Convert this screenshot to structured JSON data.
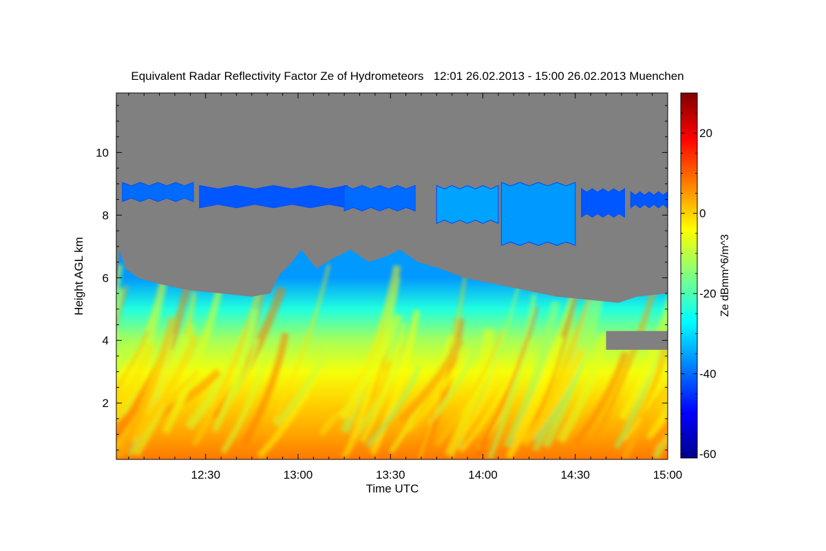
{
  "chart_data": {
    "type": "heatmap",
    "title": "Equivalent Radar Reflectivity Factor Ze of Hydrometeors   12:01 26.02.2013 - 15:00 26.02.2013 Muenchen",
    "xlabel": "Time UTC",
    "ylabel": "Height AGL km",
    "colorbar_label": "Ze dBmm^6/m^3",
    "x_range_minutes_utc": [
      721,
      900
    ],
    "x_ticks": [
      {
        "minute": 750,
        "label": "12:30"
      },
      {
        "minute": 780,
        "label": "13:00"
      },
      {
        "minute": 810,
        "label": "13:30"
      },
      {
        "minute": 840,
        "label": "14:00"
      },
      {
        "minute": 870,
        "label": "14:30"
      },
      {
        "minute": 900,
        "label": "15:00"
      }
    ],
    "y_range_km": [
      0.2,
      11.9
    ],
    "y_ticks": [
      {
        "value": 2,
        "label": "2"
      },
      {
        "value": 4,
        "label": "4"
      },
      {
        "value": 6,
        "label": "6"
      },
      {
        "value": 8,
        "label": "8"
      },
      {
        "value": 10,
        "label": "10"
      }
    ],
    "colorbar_range": [
      -61,
      30
    ],
    "colorbar_ticks": [
      {
        "value": 20,
        "label": "20"
      },
      {
        "value": 0,
        "label": "0"
      },
      {
        "value": -20,
        "label": "-20"
      },
      {
        "value": -40,
        "label": "-40"
      },
      {
        "value": -60,
        "label": "-60"
      }
    ],
    "colormap": [
      "#00008f",
      "#0000ff",
      "#0080ff",
      "#00ffff",
      "#80ff80",
      "#ffff00",
      "#ff8000",
      "#ff0000",
      "#800000"
    ],
    "no_data_color": "#808080",
    "lower_cloud": {
      "top_km": [
        {
          "t": 721,
          "h": 5.4
        },
        {
          "t": 722,
          "h": 6.9
        },
        {
          "t": 724,
          "h": 6.3
        },
        {
          "t": 728,
          "h": 6.0
        },
        {
          "t": 735,
          "h": 5.8
        },
        {
          "t": 745,
          "h": 5.6
        },
        {
          "t": 755,
          "h": 5.5
        },
        {
          "t": 765,
          "h": 5.4
        },
        {
          "t": 771,
          "h": 5.5
        },
        {
          "t": 774,
          "h": 6.1
        },
        {
          "t": 778,
          "h": 6.5
        },
        {
          "t": 781,
          "h": 6.9
        },
        {
          "t": 786,
          "h": 6.3
        },
        {
          "t": 791,
          "h": 6.6
        },
        {
          "t": 797,
          "h": 6.9
        },
        {
          "t": 803,
          "h": 6.5
        },
        {
          "t": 809,
          "h": 6.7
        },
        {
          "t": 813,
          "h": 6.9
        },
        {
          "t": 819,
          "h": 6.5
        },
        {
          "t": 826,
          "h": 6.3
        },
        {
          "t": 834,
          "h": 6.0
        },
        {
          "t": 844,
          "h": 5.8
        },
        {
          "t": 854,
          "h": 5.6
        },
        {
          "t": 864,
          "h": 5.4
        },
        {
          "t": 874,
          "h": 5.3
        },
        {
          "t": 884,
          "h": 5.2
        },
        {
          "t": 890,
          "h": 5.4
        },
        {
          "t": 900,
          "h": 5.5
        }
      ],
      "gap_after_minute": 880,
      "gap_km": [
        3.7,
        4.3
      ]
    },
    "upper_cloud_bands": [
      {
        "t0": 723,
        "t1": 746,
        "base_km": 8.5,
        "top_km": 9.0,
        "ze_dbz": -40
      },
      {
        "t0": 748,
        "t1": 796,
        "base_km": 8.3,
        "top_km": 8.9,
        "ze_dbz": -42
      },
      {
        "t0": 795,
        "t1": 818,
        "base_km": 8.2,
        "top_km": 8.9,
        "ze_dbz": -40
      },
      {
        "t0": 825,
        "t1": 845,
        "base_km": 7.8,
        "top_km": 8.9,
        "ze_dbz": -35
      },
      {
        "t0": 846,
        "t1": 870,
        "base_km": 7.1,
        "top_km": 9.0,
        "ze_dbz": -36
      },
      {
        "t0": 872,
        "t1": 886,
        "base_km": 8.0,
        "top_km": 8.8,
        "ze_dbz": -42
      },
      {
        "t0": 888,
        "t1": 900,
        "base_km": 8.3,
        "top_km": 8.7,
        "ze_dbz": -42
      }
    ],
    "reflectivity_by_height_dbz": [
      {
        "h_km": 0.2,
        "ze_dbz": 8
      },
      {
        "h_km": 1.0,
        "ze_dbz": 4
      },
      {
        "h_km": 2.0,
        "ze_dbz": 0
      },
      {
        "h_km": 3.0,
        "ze_dbz": -5
      },
      {
        "h_km": 4.0,
        "ze_dbz": -12
      },
      {
        "h_km": 5.0,
        "ze_dbz": -24
      },
      {
        "h_km": 6.0,
        "ze_dbz": -36
      }
    ]
  }
}
